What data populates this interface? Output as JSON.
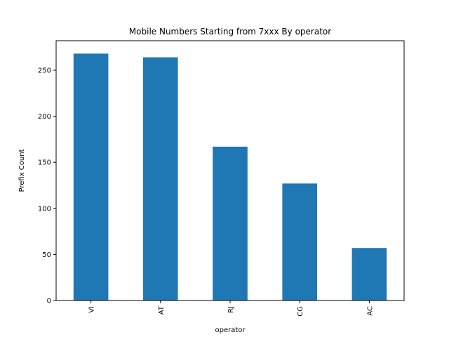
{
  "chart_data": {
    "type": "bar",
    "title": "Mobile Numbers Starting from 7xxx By operator",
    "xlabel": "operator",
    "ylabel": "Prefix Count",
    "categories": [
      "VI",
      "AT",
      "RJ",
      "CG",
      "AC"
    ],
    "values": [
      268,
      264,
      167,
      127,
      57
    ],
    "ylim": [
      0,
      282
    ],
    "yticks": [
      0,
      50,
      100,
      150,
      200,
      250
    ],
    "grid": false,
    "legend": "none",
    "bar_color": "#1f77b4"
  }
}
